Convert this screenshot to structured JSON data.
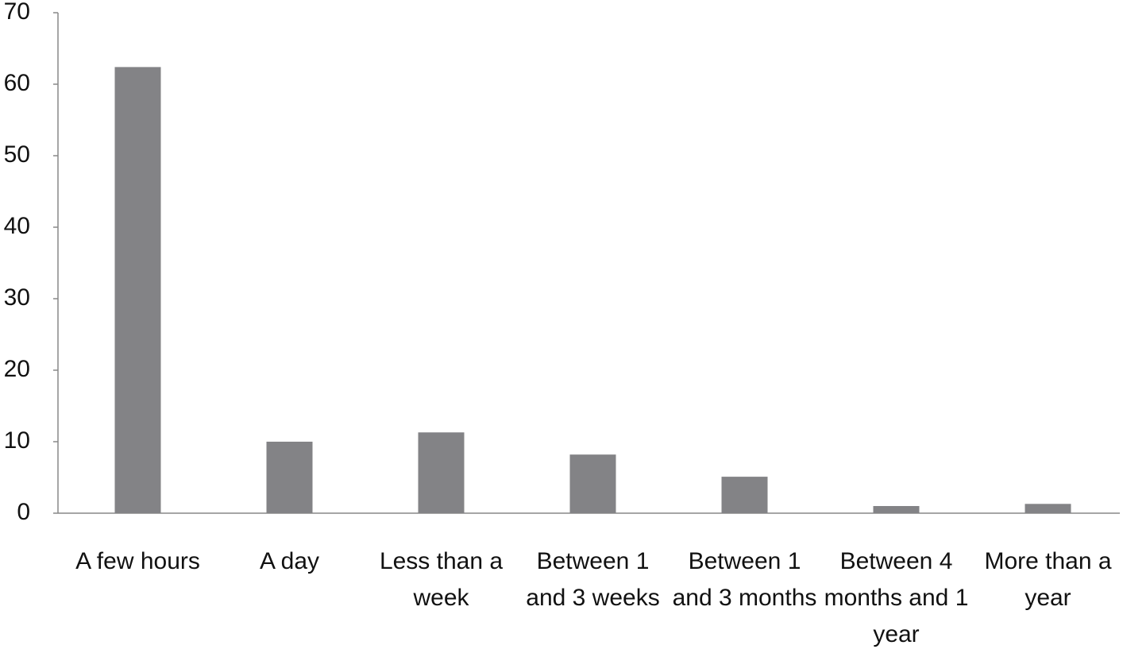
{
  "chart_data": {
    "type": "bar",
    "categories": [
      "A few hours",
      "A day",
      "Less than a week",
      "Between 1 and 3 weeks",
      "Between 1 and 3 months",
      "Between 4 months and 1 year",
      "More than a year"
    ],
    "values": [
      62.4,
      10,
      11.3,
      8.2,
      5.1,
      1,
      1.3
    ],
    "color": "#838386",
    "ylim": [
      0,
      70
    ],
    "yticks": [
      0,
      10,
      20,
      30,
      40,
      50,
      60,
      70
    ],
    "grid": false
  }
}
